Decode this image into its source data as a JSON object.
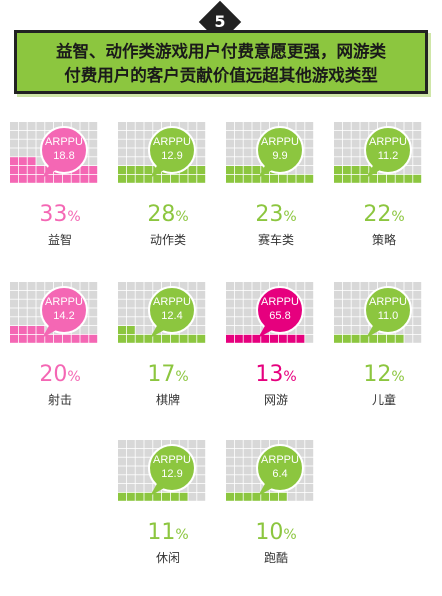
{
  "header": {
    "badge": "5",
    "title": "益智、动作类游戏用户付费意愿更强，网游类\n付费用户的客户贡献价值远超其他游戏类型"
  },
  "colors": {
    "pink": "#f467b4",
    "green": "#8cc63f",
    "blue": "#2e9fe0",
    "magenta": "#e6007e",
    "grid": "#d8d8d8"
  },
  "chart_data": {
    "type": "waffle",
    "unit": "%",
    "bubble_label": "ARPPU",
    "items": [
      {
        "category": "益智",
        "percent": 33,
        "percent_text": "33",
        "arppu": "18.8",
        "color": "pink"
      },
      {
        "category": "动作类",
        "percent": 28,
        "percent_text": "28",
        "arppu": "12.9",
        "color": "green"
      },
      {
        "category": "赛车类",
        "percent": 23,
        "percent_text": "23",
        "arppu": "9.9",
        "color": "green"
      },
      {
        "category": "策略",
        "percent": 22,
        "percent_text": "22",
        "arppu": "11.2",
        "color": "green"
      },
      {
        "category": "射击",
        "percent": 20,
        "percent_text": "20",
        "arppu": "14.2",
        "color": "pink"
      },
      {
        "category": "棋牌",
        "percent": 17,
        "percent_text": "17",
        "arppu": "12.4",
        "color": "green"
      },
      {
        "category": "网游",
        "percent": 13,
        "percent_text": "13",
        "arppu": "65.8",
        "color": "magenta"
      },
      {
        "category": "儿童",
        "percent": 12,
        "percent_text": "12",
        "arppu": "11.0",
        "color": "green"
      },
      {
        "category": "休闲",
        "percent": 11,
        "percent_text": "11",
        "arppu": "12.9",
        "color": "green"
      },
      {
        "category": "跑酷",
        "percent": 10,
        "percent_text": "10",
        "arppu": "6.4",
        "color": "green"
      }
    ]
  }
}
